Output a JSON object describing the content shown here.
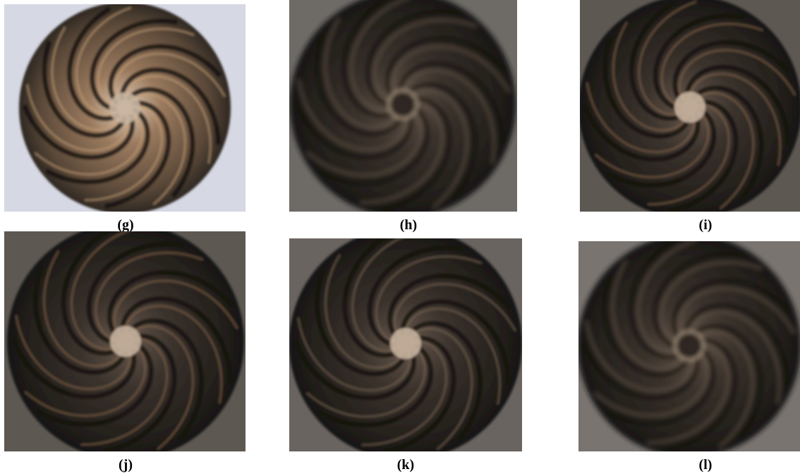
{
  "panels": [
    {
      "label": "(g)"
    },
    {
      "label": "(h)"
    },
    {
      "label": "(i)"
    },
    {
      "label": "(j)"
    },
    {
      "label": "(k)"
    },
    {
      "label": "(l)"
    }
  ]
}
